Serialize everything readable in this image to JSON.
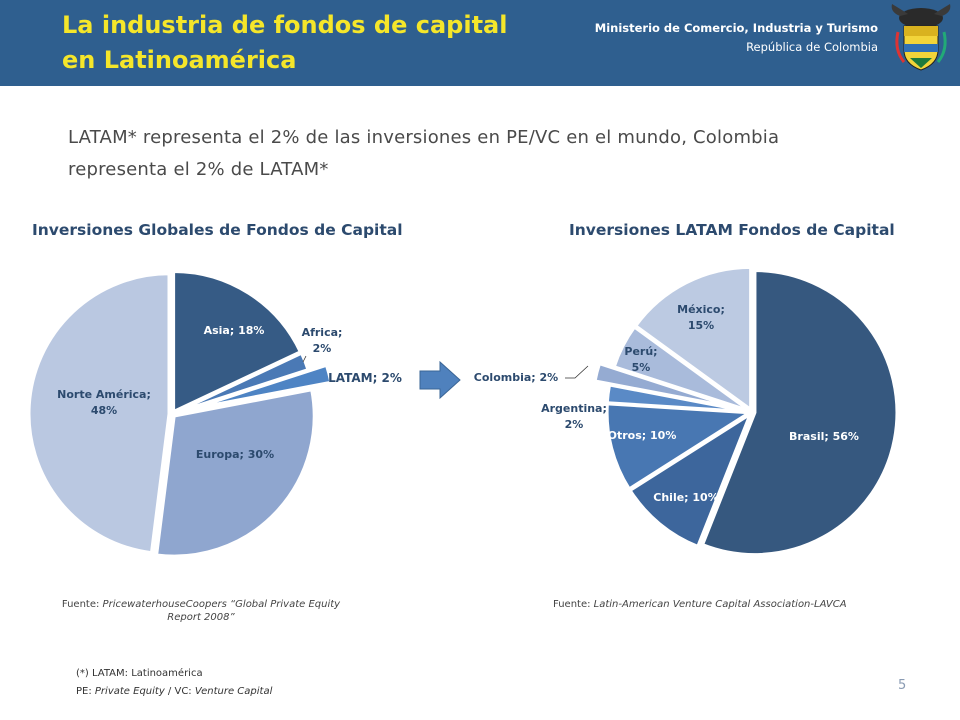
{
  "header": {
    "title_line1": "La industria de fondos de capital",
    "title_line2": "en Latinoamérica",
    "ministry_line1": "Ministerio de Comercio, Industria y Turismo",
    "ministry_line2": "República de Colombia"
  },
  "subtitle_line1": "LATAM* representa el 2% de las inversiones en PE/VC en el mundo, Colombia",
  "subtitle_line2": "representa el 2% de LATAM*",
  "chart_data": [
    {
      "type": "pie",
      "title": "Inversiones Globales de Fondos de Capital",
      "slices": [
        {
          "label": "Asia",
          "value": 18,
          "text": "Asia; 18%",
          "color": "#365b85"
        },
        {
          "label": "Africa",
          "value": 2,
          "text": "Africa;",
          "text2": "2%",
          "color": "#4a79b5"
        },
        {
          "label": "LATAM",
          "value": 2,
          "text": "LATAM; 2%",
          "color": "#4e84c4",
          "exploded": true
        },
        {
          "label": "Europa",
          "value": 30,
          "text": "Europa; 30%",
          "color": "#8fa6cf"
        },
        {
          "label": "Norte América",
          "value": 48,
          "text": "Norte América;",
          "text2": "48%",
          "color": "#bac8e1"
        }
      ]
    },
    {
      "type": "pie",
      "title": "Inversiones LATAM Fondos de Capital",
      "slices": [
        {
          "label": "Brasil",
          "value": 56,
          "text": "Brasil; 56%",
          "color": "#36587f"
        },
        {
          "label": "Chile",
          "value": 10,
          "text": "Chile; 10%",
          "color": "#3d669c"
        },
        {
          "label": "Otros",
          "value": 10,
          "text": "Otros; 10%",
          "color": "#4877b2"
        },
        {
          "label": "Argentina",
          "value": 2,
          "text": "Argentina;",
          "text2": "2%",
          "color": "#5a8ac6"
        },
        {
          "label": "Colombia",
          "value": 2,
          "text": "Colombia; 2%",
          "color": "#95abd2",
          "exploded": true
        },
        {
          "label": "Perú",
          "value": 5,
          "text": "Perú;",
          "text2": "5%",
          "color": "#a9bbdb"
        },
        {
          "label": "México",
          "value": 15,
          "text": "México;",
          "text2": "15%",
          "color": "#bccae2"
        }
      ]
    }
  ],
  "source_left_prefix": "Fuente: ",
  "source_left_italic": "PricewaterhouseCoopers “Global Private Equity",
  "source_left_line2": "Report 2008”",
  "source_right_prefix": "Fuente: ",
  "source_right_italic": "Latin-American Venture Capital Association-LAVCA",
  "footnote1": "(*) LATAM: Latinoamérica",
  "footnote2_a": "PE: ",
  "footnote2_b": "Private Equity",
  "footnote2_c": " / VC: ",
  "footnote2_d": "Venture Capital",
  "page_number": "5"
}
